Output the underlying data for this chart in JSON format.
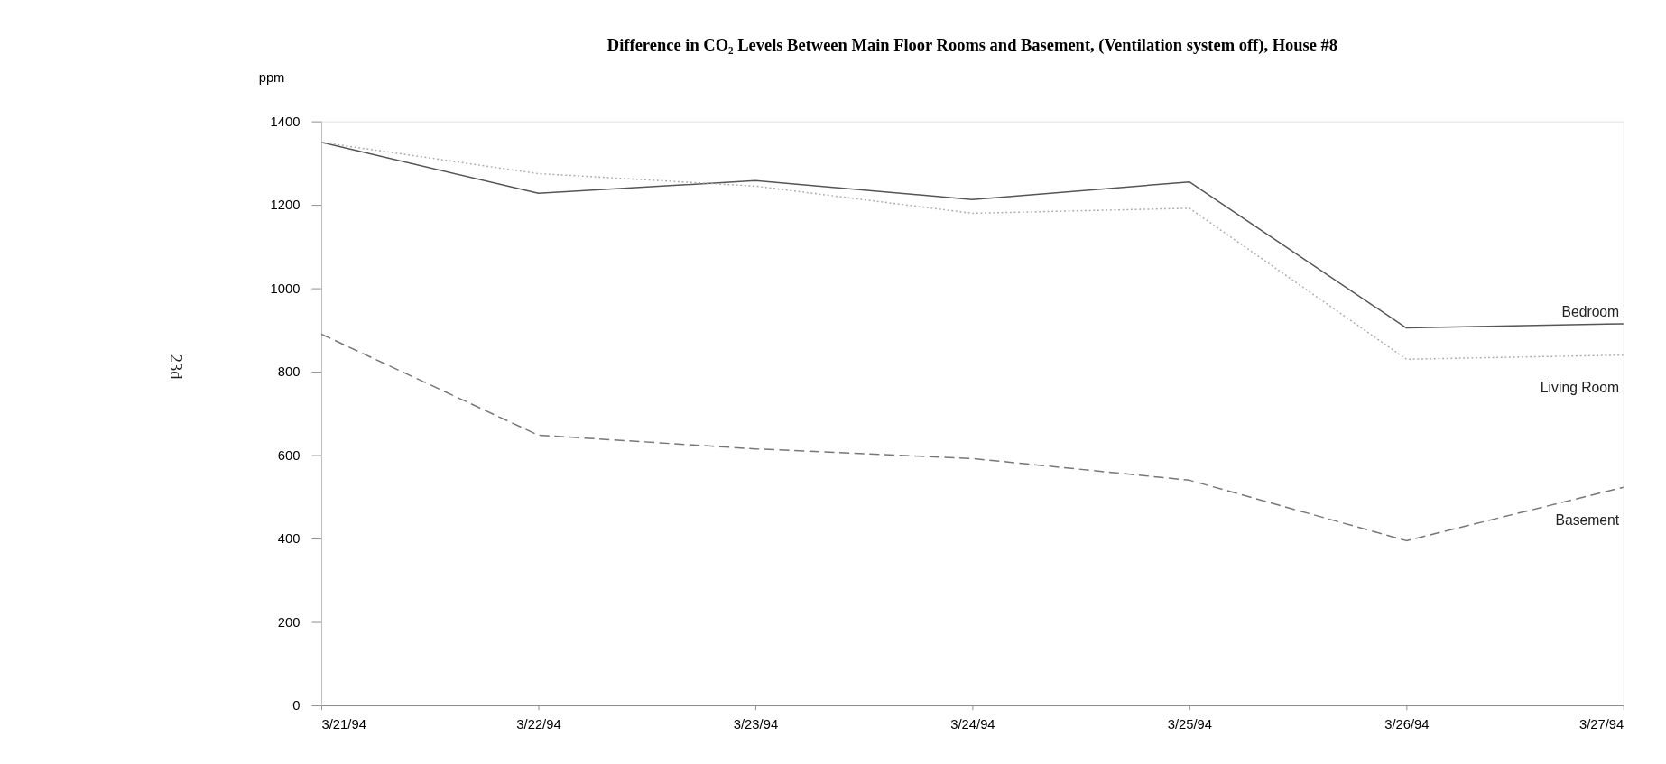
{
  "chart_data": {
    "type": "line",
    "title": "Difference in CO₂ Levels Between Main Floor Rooms and Basement, (Ventilation system off), House #8",
    "ylabel": "ppm",
    "categories": [
      "3/21/94",
      "3/22/94",
      "3/23/94",
      "3/24/94",
      "3/25/94",
      "3/26/94",
      "3/27/94"
    ],
    "series": [
      {
        "name": "Bedroom",
        "color": "#555555",
        "line_style": "solid",
        "values": [
          1350,
          1228,
          1258,
          1213,
          1255,
          905,
          915
        ]
      },
      {
        "name": "Living Room",
        "color": "#aaaaaa",
        "line_style": "dotted",
        "values": [
          1350,
          1275,
          1245,
          1180,
          1192,
          830,
          840
        ]
      },
      {
        "name": "Basement",
        "color": "#777777",
        "line_style": "dashed",
        "values": [
          890,
          648,
          615,
          592,
          540,
          395,
          523
        ]
      }
    ],
    "ylim": [
      0,
      1400
    ],
    "yticks": [
      0,
      200,
      400,
      600,
      800,
      1000,
      1200,
      1400
    ],
    "grid": false,
    "legend": false,
    "marker": "none",
    "annotations": [
      "23d"
    ]
  }
}
